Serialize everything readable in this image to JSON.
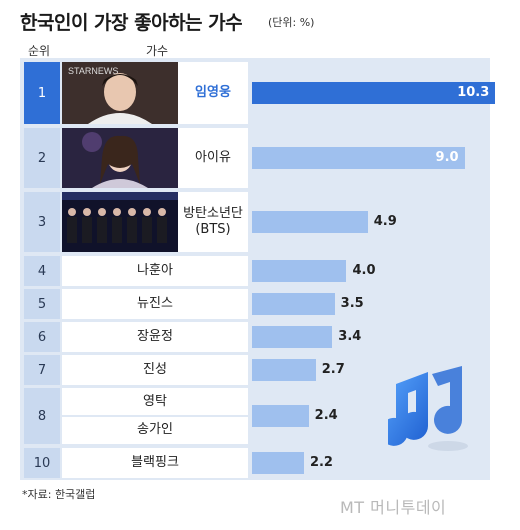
{
  "title": "한국인이 가장 좋아하는 가수",
  "unit": "(단위: %)",
  "headers": {
    "rank": "순위",
    "singer": "가수"
  },
  "source": "*자료: 한국갤럽",
  "logo": "MT 머니투데이",
  "colors": {
    "accent": "#2f6fd6",
    "bar": "#9fc0ee",
    "panel": "#dfe8f4",
    "rank": "#c9d9ef"
  },
  "chart_data": {
    "type": "bar",
    "orientation": "horizontal",
    "title": "한국인이 가장 좋아하는 가수",
    "unit": "(단위: %)",
    "rows": [
      {
        "rank": "1",
        "names": [
          "임영웅"
        ],
        "value": 10.3,
        "value_label": "10.3",
        "photo": true,
        "highlight": true
      },
      {
        "rank": "2",
        "names": [
          "아이유"
        ],
        "value": 9.0,
        "value_label": "9.0",
        "photo": true,
        "highlight": false
      },
      {
        "rank": "3",
        "names": [
          "방탄소년단",
          "(BTS)"
        ],
        "value": 4.9,
        "value_label": "4.9",
        "photo": true,
        "highlight": false
      },
      {
        "rank": "4",
        "names": [
          "나훈아"
        ],
        "value": 4.0,
        "value_label": "4.0",
        "photo": false,
        "highlight": false
      },
      {
        "rank": "5",
        "names": [
          "뉴진스"
        ],
        "value": 3.5,
        "value_label": "3.5",
        "photo": false,
        "highlight": false
      },
      {
        "rank": "6",
        "names": [
          "장윤정"
        ],
        "value": 3.4,
        "value_label": "3.4",
        "photo": false,
        "highlight": false
      },
      {
        "rank": "7",
        "names": [
          "진성"
        ],
        "value": 2.7,
        "value_label": "2.7",
        "photo": false,
        "highlight": false
      },
      {
        "rank": "8",
        "names": [
          "영탁",
          "송가인"
        ],
        "value": 2.4,
        "value_label": "2.4",
        "photo": false,
        "highlight": false
      },
      {
        "rank": "10",
        "names": [
          "블랙핑크"
        ],
        "value": 2.2,
        "value_label": "2.2",
        "photo": false,
        "highlight": false
      }
    ],
    "xlim": [
      0,
      10.5
    ]
  }
}
